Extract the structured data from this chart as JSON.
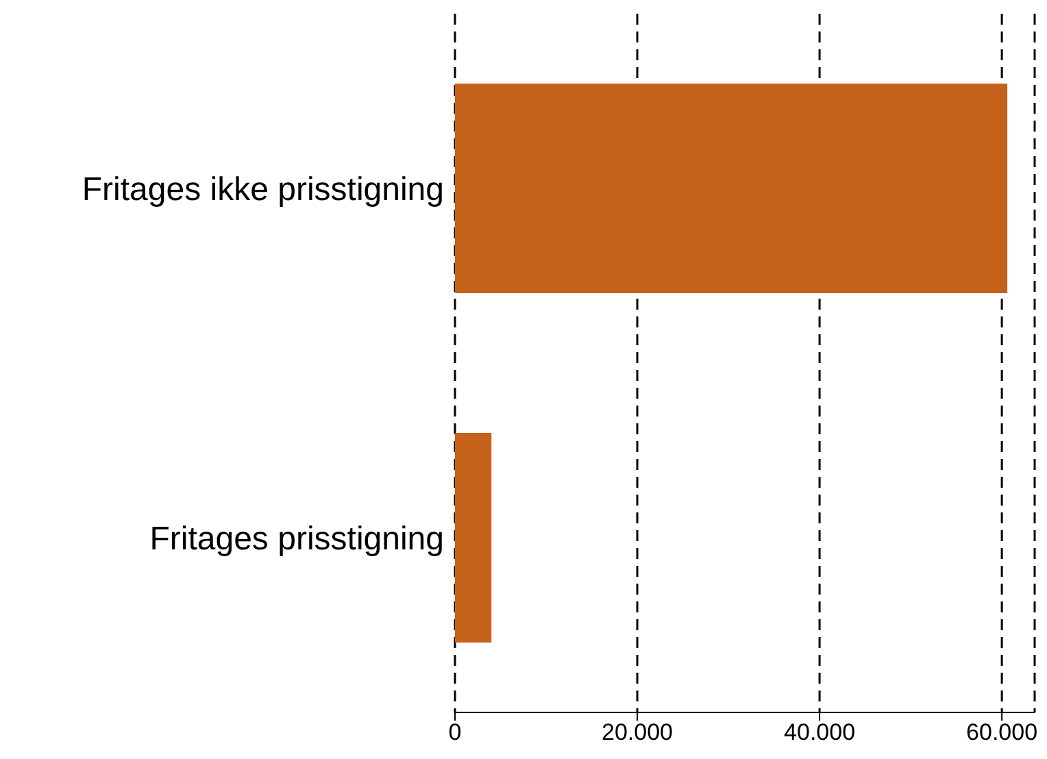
{
  "chart_data": {
    "type": "bar",
    "orientation": "horizontal",
    "categories": [
      "Fritages ikke prisstigning",
      "Fritages prisstigning"
    ],
    "values": [
      60600,
      4000
    ],
    "color": "#c5611b",
    "xlim": [
      0,
      63600
    ],
    "xticks": [
      0,
      {
        "value": 20000,
        "label": "20.000"
      },
      {
        "value": 40000,
        "label": "40.000"
      },
      {
        "value": 60000,
        "label": "60.000"
      }
    ],
    "grid": "x"
  }
}
